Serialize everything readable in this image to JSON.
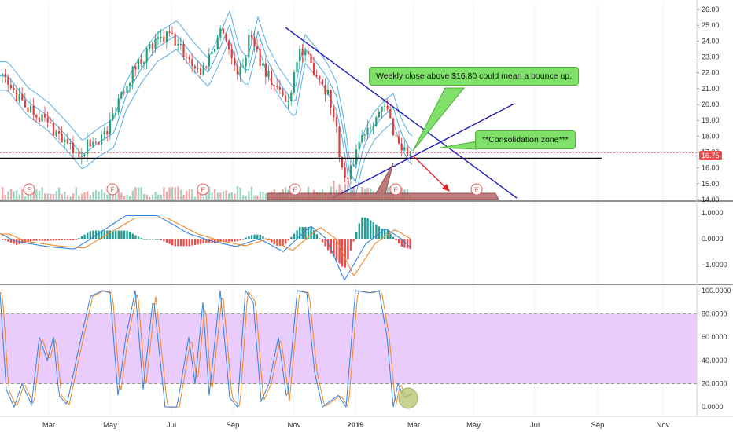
{
  "chart_data": [
    {
      "panel": "price",
      "type": "candlestick",
      "y_ticks": [
        "26.00",
        "25.00",
        "24.00",
        "23.00",
        "22.00",
        "21.00",
        "20.00",
        "19.00",
        "18.00",
        "17.00",
        "16.00",
        "15.00",
        "14.00"
      ],
      "ylim": [
        14,
        26.4
      ],
      "last_price_label": "16.75",
      "support_level": 16.6,
      "earnings_marker_label": "E",
      "earnings_markers": [
        "Feb",
        "May",
        "Aug",
        "Nov",
        "Feb",
        "May"
      ],
      "annotations": [
        {
          "text": "Weekly close above $16.80 could mean a bounce up."
        },
        {
          "text": "**Consolidation zone***"
        }
      ]
    },
    {
      "panel": "macd",
      "type": "line",
      "y_ticks": [
        "1.0000",
        "0.0000",
        "−1.0000"
      ],
      "ylim": [
        -1.7,
        1.4
      ],
      "series_colors": {
        "macd": "#2f83e0",
        "signal": "#f0862a",
        "hist_pos": "#1f9e96",
        "hist_neg": "#ef4b4b"
      }
    },
    {
      "panel": "stochastic",
      "type": "line",
      "y_ticks": [
        "100.0000",
        "80.0000",
        "60.0000",
        "40.0000",
        "20.0000",
        "0.0000"
      ],
      "ylim": [
        -8,
        104
      ],
      "band": [
        20,
        80
      ],
      "band_color": "#e9ccfb"
    }
  ],
  "x_axis": {
    "labels": [
      "Mar",
      "May",
      "Jul",
      "Sep",
      "Nov",
      "2019",
      "Mar",
      "May",
      "Jul",
      "Sep",
      "Nov"
    ]
  },
  "colors": {
    "up": "#22a07a",
    "down": "#e23d3d",
    "trend": "#1f1fb8",
    "ma": "#3aa0e0",
    "support": "#111111",
    "note_bg": "#7fe06a"
  }
}
